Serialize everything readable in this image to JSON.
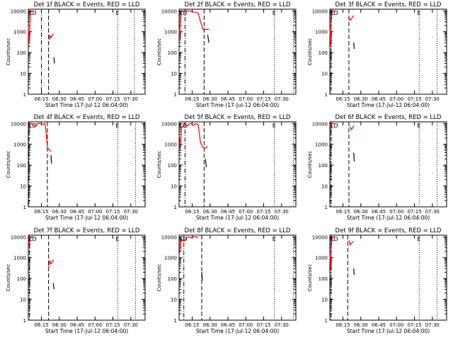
{
  "chart_data": [
    {
      "type": "line",
      "title": "Det 1f BLACK = Events, RED = LLD",
      "xlabel": "Start Time (17-Jul-12 06:04:00)",
      "ylabel": "Counts/sec",
      "yscale": "log",
      "ylim": [
        1,
        12000
      ],
      "xlim": [
        "06:04",
        "07:42"
      ],
      "x_ticks": [
        "06:15",
        "06:30",
        "06:45",
        "07:00",
        "07:15",
        "07:30"
      ],
      "y_ticks": [
        "1",
        "10",
        "100",
        "1000",
        "10000"
      ],
      "flags": [
        "LD",
        "E"
      ],
      "markers": {
        "dash_dot": [
          "06:15"
        ],
        "dashed": [
          "06:21"
        ],
        "dotted": [
          "07:19",
          "07:33"
        ]
      },
      "series": [
        {
          "color": "#ff0000",
          "x": [
            "06:04",
            "06:04:30",
            "06:05",
            "06:05:30",
            "06:06",
            "06:07",
            "06:08"
          ],
          "y": [
            2000,
            250,
            800,
            5000,
            9000,
            10000,
            9500
          ]
        },
        {
          "color": "#ff0000",
          "x": [
            "06:21:30",
            "06:22",
            "06:23",
            "06:24",
            "06:25"
          ],
          "y": [
            400,
            700,
            500,
            650,
            800
          ]
        },
        {
          "color": "#000000",
          "x": [
            "06:25:30",
            "06:26"
          ],
          "y": [
            60,
            30
          ]
        }
      ]
    },
    {
      "type": "line",
      "title": "Det 2f BLACK = Events, RED = LLD",
      "xlabel": "Start Time (17-Jul-12 06:04:00)",
      "ylabel": "Counts/sec",
      "yscale": "log",
      "ylim": [
        1,
        12000
      ],
      "xlim": [
        "06:04",
        "07:42"
      ],
      "x_ticks": [
        "06:15",
        "06:30",
        "06:45",
        "07:00",
        "07:15",
        "07:30"
      ],
      "y_ticks": [
        "1",
        "10",
        "100",
        "1000",
        "10000"
      ],
      "flags": [
        "LD",
        "E"
      ],
      "markers": {
        "dash_dot": [
          "06:09"
        ],
        "dashed": [
          "06:25"
        ],
        "dotted": [
          "07:24",
          "07:40"
        ]
      },
      "series": [
        {
          "color": "#ff0000",
          "x": [
            "06:04",
            "06:04:30",
            "06:05",
            "06:06",
            "06:08",
            "06:12",
            "06:16",
            "06:20",
            "06:22",
            "06:24",
            "06:26",
            "06:28",
            "06:29"
          ],
          "y": [
            1500,
            400,
            3000,
            9000,
            10000,
            10000,
            9000,
            8000,
            3000,
            1300,
            1300,
            1300,
            1300
          ]
        },
        {
          "color": "#000000",
          "x": [
            "06:28",
            "06:29"
          ],
          "y": [
            700,
            300
          ]
        }
      ]
    },
    {
      "type": "line",
      "title": "Det 3f BLACK = Events, RED = LLD",
      "xlabel": "Start Time (17-Jul-12 06:04:00)",
      "ylabel": "Counts/sec",
      "yscale": "log",
      "ylim": [
        1,
        12000
      ],
      "xlim": [
        "06:04",
        "07:42"
      ],
      "x_ticks": [
        "06:15",
        "06:30",
        "06:45",
        "07:00",
        "07:15",
        "07:30"
      ],
      "y_ticks": [
        "1",
        "10",
        "100",
        "1000",
        "10000"
      ],
      "flags": [
        "LD",
        "E"
      ],
      "markers": {
        "dash_dot": [
          "06:05"
        ],
        "dashed": [
          "06:20"
        ],
        "dotted": [
          "07:19",
          "07:34"
        ]
      },
      "series": [
        {
          "color": "#ff0000",
          "x": [
            "06:04",
            "06:04:30",
            "06:05",
            "06:06",
            "06:07",
            "06:08"
          ],
          "y": [
            1500,
            200,
            3000,
            9000,
            10000,
            9500
          ]
        },
        {
          "color": "#ff0000",
          "x": [
            "06:20",
            "06:21",
            "06:22",
            "06:23",
            "06:24"
          ],
          "y": [
            5000,
            3500,
            4000,
            5000,
            6000
          ]
        },
        {
          "color": "#000000",
          "x": [
            "06:24",
            "06:24:30"
          ],
          "y": [
            300,
            150
          ]
        }
      ]
    },
    {
      "type": "line",
      "title": "Det 4f BLACK = Events, RED = LLD",
      "xlabel": "Start Time (17-Jul-12 06:04:00)",
      "ylabel": "Counts/sec",
      "yscale": "log",
      "ylim": [
        1,
        12000
      ],
      "xlim": [
        "06:04",
        "07:42"
      ],
      "x_ticks": [
        "06:15",
        "06:30",
        "06:45",
        "07:00",
        "07:15",
        "07:30"
      ],
      "y_ticks": [
        "1",
        "10",
        "100",
        "1000",
        "10000"
      ],
      "flags": [
        "LD",
        "E"
      ],
      "markers": {
        "dash_dot": [
          "06:04:30"
        ],
        "dashed": [
          "06:20"
        ],
        "dotted": [
          "07:19",
          "07:34"
        ]
      },
      "series": [
        {
          "color": "#ff0000",
          "x": [
            "06:04",
            "06:06",
            "06:08",
            "06:10",
            "06:12",
            "06:14",
            "06:16",
            "06:18",
            "06:19",
            "06:20",
            "06:21",
            "06:22",
            "06:23"
          ],
          "y": [
            8000,
            10000,
            9000,
            7000,
            10000,
            10000,
            9000,
            10000,
            3000,
            700,
            600,
            500,
            450
          ]
        },
        {
          "color": "#000000",
          "x": [
            "06:23",
            "06:23:30"
          ],
          "y": [
            300,
            120
          ]
        }
      ]
    },
    {
      "type": "line",
      "title": "Det 5f BLACK = Events, RED = LLD",
      "xlabel": "Start Time (17-Jul-12 06:04:00)",
      "ylabel": "Counts/sec",
      "yscale": "log",
      "ylim": [
        1,
        12000
      ],
      "xlim": [
        "06:04",
        "07:42"
      ],
      "x_ticks": [
        "06:15",
        "06:30",
        "06:45",
        "07:00",
        "07:15",
        "07:30"
      ],
      "y_ticks": [
        "1",
        "10",
        "100",
        "1000",
        "10000"
      ],
      "flags": [
        "LD",
        "E"
      ],
      "markers": {
        "dash_dot": [
          "06:09"
        ],
        "dashed": [
          "06:25"
        ],
        "dotted": [
          "07:24",
          "07:40"
        ]
      },
      "series": [
        {
          "color": "#ff0000",
          "x": [
            "06:04",
            "06:05",
            "06:06",
            "06:08",
            "06:10",
            "06:12",
            "06:14",
            "06:16",
            "06:18",
            "06:20",
            "06:22",
            "06:24",
            "06:26",
            "06:28"
          ],
          "y": [
            3000,
            900,
            6000,
            9000,
            7000,
            9000,
            10000,
            8000,
            10000,
            9000,
            1200,
            700,
            650,
            800
          ]
        },
        {
          "color": "#000000",
          "x": [
            "06:26",
            "06:27"
          ],
          "y": [
            200,
            80
          ]
        }
      ]
    },
    {
      "type": "line",
      "title": "Det 6f BLACK = Events, RED = LLD",
      "xlabel": "Start Time (17-Jul-12 06:04:00)",
      "ylabel": "Counts/sec",
      "yscale": "log",
      "ylim": [
        1,
        12000
      ],
      "xlim": [
        "06:04",
        "07:42"
      ],
      "x_ticks": [
        "06:15",
        "06:30",
        "06:45",
        "07:00",
        "07:15",
        "07:30"
      ],
      "y_ticks": [
        "1",
        "10",
        "100",
        "1000",
        "10000"
      ],
      "flags": [
        "LD",
        "E"
      ],
      "markers": {
        "dash_dot": [
          "06:05"
        ],
        "dashed": [
          "06:20"
        ],
        "dotted": [
          "07:19",
          "07:34"
        ]
      },
      "series": [
        {
          "color": "#ff0000",
          "x": [
            "06:04",
            "06:04:30",
            "06:05",
            "06:06",
            "06:08"
          ],
          "y": [
            9000,
            7000,
            10000,
            10000,
            9500
          ]
        },
        {
          "color": "#ff0000",
          "x": [
            "06:21",
            "06:22",
            "06:23",
            "06:24"
          ],
          "y": [
            7000,
            5000,
            6000,
            8000
          ]
        },
        {
          "color": "#000000",
          "x": [
            "06:24",
            "06:24:30"
          ],
          "y": [
            400,
            150
          ]
        }
      ]
    },
    {
      "type": "line",
      "title": "Det 7f BLACK = Events, RED = LLD",
      "xlabel": "Start Time (17-Jul-12 06:04:00)",
      "ylabel": "Counts/sec",
      "yscale": "log",
      "ylim": [
        1,
        12000
      ],
      "xlim": [
        "06:04",
        "07:42"
      ],
      "x_ticks": [
        "06:15",
        "06:30",
        "06:45",
        "07:00",
        "07:15",
        "07:30"
      ],
      "y_ticks": [
        "1",
        "10",
        "100",
        "1000",
        "10000"
      ],
      "flags": [
        "LD",
        "E"
      ],
      "markers": {
        "dash_dot": [
          "06:05"
        ],
        "dashed": [
          "06:21"
        ],
        "dotted": [
          "07:19",
          "07:34"
        ]
      },
      "series": [
        {
          "color": "#ff0000",
          "x": [
            "06:04",
            "06:05",
            "06:06",
            "06:07",
            "06:08"
          ],
          "y": [
            4000,
            10000,
            9000,
            10000,
            9000
          ]
        },
        {
          "color": "#ff0000",
          "x": [
            "06:21",
            "06:22",
            "06:23",
            "06:24",
            "06:25"
          ],
          "y": [
            300,
            700,
            500,
            600,
            800
          ]
        },
        {
          "color": "#000000",
          "x": [
            "06:25",
            "06:25:30"
          ],
          "y": [
            60,
            30
          ]
        }
      ]
    },
    {
      "type": "line",
      "title": "Det 8f BLACK = Events, RED = LLD",
      "xlabel": "Start Time (17-Jul-12 06:04:00)",
      "ylabel": "Counts/sec",
      "yscale": "log",
      "ylim": [
        1,
        12000
      ],
      "xlim": [
        "06:04",
        "07:42"
      ],
      "x_ticks": [
        "06:15",
        "06:30",
        "06:45",
        "07:00",
        "07:15",
        "07:30"
      ],
      "y_ticks": [
        "1",
        "10",
        "100",
        "1000",
        "10000"
      ],
      "flags": [
        "LD",
        "E"
      ],
      "markers": {
        "dash_dot": [
          "06:08"
        ],
        "dashed": [
          "06:23"
        ],
        "dotted": [
          "07:24",
          "07:40"
        ]
      },
      "series": [
        {
          "color": "#ff0000",
          "x": [
            "06:04",
            "06:05",
            "06:06",
            "06:08",
            "06:10",
            "06:12",
            "06:14",
            "06:16",
            "06:18",
            "06:20"
          ],
          "y": [
            1200,
            3000,
            8000,
            6000,
            9000,
            10000,
            9000,
            10000,
            10000,
            9000
          ]
        },
        {
          "color": "#000000",
          "x": [
            "06:23",
            "06:23:30"
          ],
          "y": [
            200,
            80
          ]
        }
      ]
    },
    {
      "type": "line",
      "title": "Det 9f BLACK = Events, RED = LLD",
      "xlabel": "Start Time (17-Jul-12 06:04:00)",
      "ylabel": "Counts/sec",
      "yscale": "log",
      "ylim": [
        1,
        12000
      ],
      "xlim": [
        "06:04",
        "07:42"
      ],
      "x_ticks": [
        "06:15",
        "06:30",
        "06:45",
        "07:00",
        "07:15",
        "07:30"
      ],
      "y_ticks": [
        "1",
        "10",
        "100",
        "1000",
        "10000"
      ],
      "flags": [
        "LD",
        "E"
      ],
      "markers": {
        "dash_dot": [
          "06:05"
        ],
        "dashed": [
          "06:19"
        ],
        "dotted": [
          "07:19",
          "07:34"
        ]
      },
      "series": [
        {
          "color": "#ff0000",
          "x": [
            "06:04",
            "06:04:30",
            "06:05",
            "06:06",
            "06:07",
            "06:08"
          ],
          "y": [
            1500,
            250,
            3000,
            9000,
            10000,
            9500
          ]
        },
        {
          "color": "#ff0000",
          "x": [
            "06:20",
            "06:21",
            "06:22",
            "06:23",
            "06:24"
          ],
          "y": [
            7000,
            4000,
            5000,
            5500,
            6000
          ]
        },
        {
          "color": "#000000",
          "x": [
            "06:24",
            "06:24:30"
          ],
          "y": [
            300,
            150
          ]
        }
      ]
    }
  ]
}
